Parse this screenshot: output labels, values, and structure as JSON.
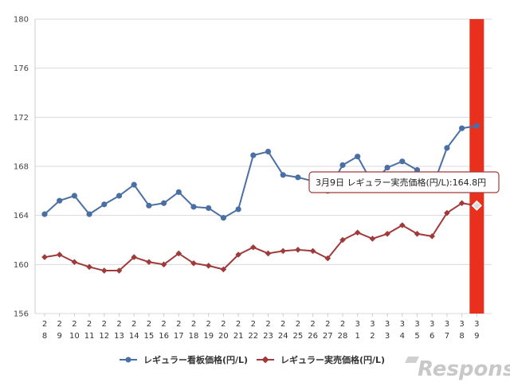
{
  "chart_data": {
    "type": "line",
    "y_axis": {
      "min": 156,
      "max": 180,
      "ticks": [
        156,
        160,
        164,
        168,
        172,
        176,
        180
      ]
    },
    "x_tick_labels": [
      [
        "2",
        "8"
      ],
      [
        "2",
        "9"
      ],
      [
        "2",
        "10"
      ],
      [
        "2",
        "11"
      ],
      [
        "2",
        "12"
      ],
      [
        "2",
        "13"
      ],
      [
        "2",
        "14"
      ],
      [
        "2",
        "15"
      ],
      [
        "2",
        "16"
      ],
      [
        "2",
        "17"
      ],
      [
        "2",
        "18"
      ],
      [
        "2",
        "19"
      ],
      [
        "2",
        "20"
      ],
      [
        "2",
        "21"
      ],
      [
        "2",
        "22"
      ],
      [
        "2",
        "23"
      ],
      [
        "2",
        "24"
      ],
      [
        "2",
        "25"
      ],
      [
        "2",
        "26"
      ],
      [
        "2",
        "27"
      ],
      [
        "2",
        "28"
      ],
      [
        "3",
        "1"
      ],
      [
        "3",
        "2"
      ],
      [
        "3",
        "3"
      ],
      [
        "3",
        "4"
      ],
      [
        "3",
        "5"
      ],
      [
        "3",
        "6"
      ],
      [
        "3",
        "7"
      ],
      [
        "3",
        "8"
      ],
      [
        "3",
        "9"
      ]
    ],
    "series": [
      {
        "name": "レギュラー看板価格(円/L)",
        "color": "#4a6fa5",
        "marker": "circle",
        "values": [
          164.1,
          165.2,
          165.6,
          164.1,
          164.9,
          165.6,
          166.5,
          164.8,
          165.0,
          165.9,
          164.7,
          164.6,
          163.8,
          164.5,
          168.9,
          169.2,
          167.3,
          167.1,
          166.8,
          166.0,
          168.1,
          168.8,
          166.6,
          167.9,
          168.4,
          167.7,
          166.2,
          169.5,
          171.1,
          171.3
        ]
      },
      {
        "name": "レギュラー実売価格(円/L)",
        "color": "#a03a3a",
        "marker": "diamond",
        "values": [
          160.6,
          160.8,
          160.2,
          159.8,
          159.5,
          159.5,
          160.6,
          160.2,
          160.0,
          160.9,
          160.1,
          159.9,
          159.6,
          160.8,
          161.4,
          160.9,
          161.1,
          161.2,
          161.1,
          160.5,
          162.0,
          162.6,
          162.1,
          162.5,
          163.2,
          162.5,
          162.3,
          164.2,
          165.0,
          164.8
        ]
      }
    ],
    "highlight": {
      "index": 29,
      "color": "#e8301c"
    },
    "tooltip": {
      "text": "3月9日  レギュラー実売価格(円/L):164.8円"
    }
  },
  "watermark": {
    "text": "Response."
  }
}
